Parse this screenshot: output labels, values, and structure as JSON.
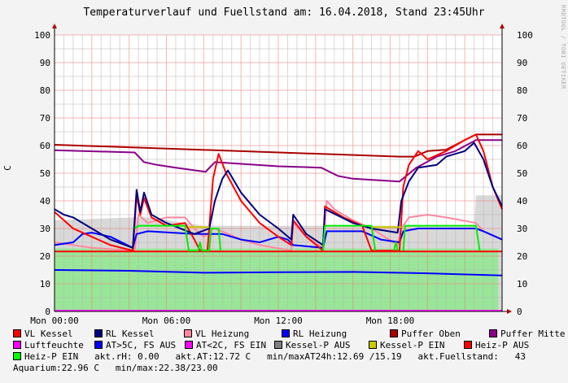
{
  "chart_data": {
    "type": "line",
    "title": "Temperaturverlauf und Fuellstand am: 16.04.2018, Stand 23:45Uhr",
    "ylabel": "C",
    "watermark": "RRDTOOL / TOBI OETIKER",
    "ylim": [
      0,
      100
    ],
    "yticks": [
      "0",
      "10",
      "20",
      "30",
      "40",
      "50",
      "60",
      "70",
      "80",
      "90",
      "100"
    ],
    "xlim_hours": [
      0,
      24
    ],
    "xticks": [
      {
        "h": 0,
        "label": "Mon 00:00"
      },
      {
        "h": 6,
        "label": "Mon 06:00"
      },
      {
        "h": 12,
        "label": "Mon 12:00"
      },
      {
        "h": 18,
        "label": "Mon 18:00"
      }
    ],
    "grid": true,
    "areas": [
      {
        "name": "Kessel-P AUS",
        "color": "#d8d8d8",
        "points": [
          [
            0,
            33
          ],
          [
            4.3,
            34
          ],
          [
            5,
            34
          ],
          [
            6,
            33
          ],
          [
            7,
            32
          ],
          [
            8,
            31
          ],
          [
            10,
            31
          ],
          [
            12,
            31
          ],
          [
            14,
            31
          ],
          [
            16,
            31
          ],
          [
            18,
            31
          ],
          [
            19,
            31
          ],
          [
            22.5,
            31
          ],
          [
            22.6,
            42
          ],
          [
            24,
            42
          ]
        ]
      },
      {
        "name": "Heiz-P EIN",
        "color": "#99e699",
        "points": [
          [
            0,
            22.8
          ],
          [
            23.8,
            22.8
          ],
          [
            23.8,
            0
          ]
        ]
      }
    ],
    "series": [
      {
        "name": "Puffer Oben",
        "color": "#aa0000",
        "points": [
          [
            0,
            60.3
          ],
          [
            18.5,
            56
          ],
          [
            19.3,
            56
          ],
          [
            20,
            58
          ],
          [
            21,
            58.5
          ],
          [
            22,
            62
          ],
          [
            22.6,
            64
          ],
          [
            24,
            64
          ]
        ]
      },
      {
        "name": "Puffer Mitte",
        "color": "#880088",
        "points": [
          [
            0,
            58.3
          ],
          [
            4.3,
            57.5
          ],
          [
            4.8,
            54
          ],
          [
            5.5,
            53
          ],
          [
            6.5,
            52
          ],
          [
            8.1,
            50.5
          ],
          [
            8.6,
            54
          ],
          [
            12,
            52.5
          ],
          [
            14.3,
            52
          ],
          [
            15.2,
            49
          ],
          [
            16,
            48
          ],
          [
            18.5,
            47
          ],
          [
            19.4,
            52
          ],
          [
            20.5,
            56
          ],
          [
            21.5,
            58
          ],
          [
            22.6,
            62
          ],
          [
            24,
            62
          ]
        ]
      },
      {
        "name": "VL Heizung",
        "color": "#ff88a0",
        "points": [
          [
            0,
            25
          ],
          [
            2,
            23
          ],
          [
            4.3,
            22
          ],
          [
            4.5,
            35
          ],
          [
            5,
            32
          ],
          [
            6,
            34
          ],
          [
            7,
            34
          ],
          [
            7.5,
            30
          ],
          [
            8,
            27
          ],
          [
            8.5,
            30
          ],
          [
            9,
            29
          ],
          [
            10,
            26
          ],
          [
            11,
            24
          ],
          [
            12.7,
            22
          ],
          [
            12.8,
            32
          ],
          [
            13.5,
            27
          ],
          [
            14.4,
            23
          ],
          [
            14.6,
            40
          ],
          [
            15,
            37
          ],
          [
            16,
            33
          ],
          [
            17,
            30
          ],
          [
            18.4,
            24
          ],
          [
            18.6,
            30
          ],
          [
            19,
            34
          ],
          [
            20,
            35
          ],
          [
            21,
            34
          ],
          [
            22.6,
            32
          ],
          [
            23,
            29
          ],
          [
            24,
            26
          ]
        ]
      },
      {
        "name": "Heiz-P AUS",
        "color": "#ff0000",
        "points": [
          [
            0,
            21.7
          ],
          [
            24,
            21.7
          ]
        ]
      },
      {
        "name": "AT>5C, FS AUS",
        "color": "#0000ff",
        "points": [
          [
            0,
            15
          ],
          [
            4,
            14.7
          ],
          [
            8,
            14
          ],
          [
            12,
            14.2
          ],
          [
            16,
            14.3
          ],
          [
            20,
            13.8
          ],
          [
            24,
            13
          ]
        ]
      },
      {
        "name": "RL Heizung",
        "color": "#0000ff",
        "points": [
          [
            0,
            24
          ],
          [
            1,
            25
          ],
          [
            1.5,
            28
          ],
          [
            2,
            28.5
          ],
          [
            3,
            27
          ],
          [
            4.2,
            23
          ],
          [
            4.4,
            28
          ],
          [
            5,
            29
          ],
          [
            7.5,
            28
          ],
          [
            9,
            28
          ],
          [
            10,
            26
          ],
          [
            11,
            25
          ],
          [
            12,
            27
          ],
          [
            12.5,
            26
          ],
          [
            12.8,
            24
          ],
          [
            14.4,
            23
          ],
          [
            14.6,
            29
          ],
          [
            16.5,
            29
          ],
          [
            17.5,
            26
          ],
          [
            18.5,
            25
          ],
          [
            18.7,
            29
          ],
          [
            19.5,
            30
          ],
          [
            22.6,
            30
          ],
          [
            23,
            29
          ],
          [
            24,
            26
          ]
        ]
      },
      {
        "name": "VL Kessel",
        "color": "#ff0000",
        "points": [
          [
            0,
            36
          ],
          [
            1,
            30
          ],
          [
            2,
            27
          ],
          [
            3,
            24
          ],
          [
            4.2,
            22
          ],
          [
            4.4,
            42
          ],
          [
            4.6,
            35
          ],
          [
            4.8,
            41
          ],
          [
            5.2,
            34
          ],
          [
            6,
            31
          ],
          [
            7,
            32
          ],
          [
            7.5,
            26
          ],
          [
            7.8,
            22
          ],
          [
            8.2,
            22
          ],
          [
            8.5,
            48
          ],
          [
            8.8,
            57
          ],
          [
            9.2,
            50
          ],
          [
            10,
            40
          ],
          [
            11,
            32
          ],
          [
            12,
            27
          ],
          [
            12.7,
            24
          ],
          [
            12.8,
            33
          ],
          [
            13.5,
            27
          ],
          [
            14.4,
            22
          ],
          [
            14.5,
            38
          ],
          [
            15.5,
            34
          ],
          [
            16.5,
            31
          ],
          [
            17,
            22
          ],
          [
            18.5,
            22
          ],
          [
            18.7,
            45
          ],
          [
            19,
            53
          ],
          [
            19.5,
            58
          ],
          [
            20,
            55
          ],
          [
            21,
            58
          ],
          [
            22,
            62
          ],
          [
            22.6,
            64
          ],
          [
            23,
            58
          ],
          [
            23.5,
            45
          ],
          [
            24,
            37
          ]
        ]
      },
      {
        "name": "RL Kessel",
        "color": "#000080",
        "points": [
          [
            0,
            37
          ],
          [
            0.5,
            35
          ],
          [
            1,
            34
          ],
          [
            2,
            30
          ],
          [
            3,
            26
          ],
          [
            4.2,
            23
          ],
          [
            4.4,
            44
          ],
          [
            4.6,
            36
          ],
          [
            4.8,
            43
          ],
          [
            5.2,
            35
          ],
          [
            6,
            32
          ],
          [
            7.5,
            28
          ],
          [
            8.3,
            30
          ],
          [
            8.6,
            40
          ],
          [
            9,
            48
          ],
          [
            9.3,
            51
          ],
          [
            10,
            43
          ],
          [
            11,
            35
          ],
          [
            12,
            30
          ],
          [
            12.7,
            26
          ],
          [
            12.8,
            35
          ],
          [
            13.5,
            28
          ],
          [
            14.4,
            24
          ],
          [
            14.5,
            37
          ],
          [
            16,
            32
          ],
          [
            17,
            30
          ],
          [
            18.4,
            28.5
          ],
          [
            18.6,
            40
          ],
          [
            19,
            47
          ],
          [
            19.5,
            52
          ],
          [
            20.5,
            53
          ],
          [
            21,
            56
          ],
          [
            22,
            58
          ],
          [
            22.5,
            61
          ],
          [
            23,
            55
          ],
          [
            23.5,
            45
          ],
          [
            24,
            38
          ]
        ]
      },
      {
        "name": "Kessel-P EIN",
        "color": "#c8c800",
        "points": [
          [
            7.2,
            30.5
          ],
          [
            8.3,
            30.5
          ],
          [
            null,
            null
          ],
          [
            17,
            30.5
          ],
          [
            18.6,
            30.5
          ]
        ]
      },
      {
        "name": "Heiz-P EIN",
        "color": "#00ee00",
        "points": [
          [
            4.3,
            30
          ],
          [
            4.5,
            31
          ],
          [
            7,
            31
          ],
          [
            7.2,
            22
          ],
          [
            7.7,
            22
          ],
          [
            7.8,
            25
          ],
          [
            7.9,
            22
          ],
          [
            8.3,
            22
          ],
          [
            8.4,
            30
          ],
          [
            8.8,
            30
          ],
          [
            8.9,
            22
          ],
          [
            null,
            null
          ],
          [
            14.4,
            22
          ],
          [
            14.5,
            31
          ],
          [
            17,
            31
          ],
          [
            17.2,
            22
          ],
          [
            null,
            null
          ],
          [
            18.2,
            22
          ],
          [
            18.3,
            25
          ],
          [
            18.4,
            22
          ],
          [
            null,
            null
          ],
          [
            18.7,
            22
          ],
          [
            18.8,
            31
          ],
          [
            22.6,
            31
          ],
          [
            22.8,
            22
          ]
        ]
      },
      {
        "name": "Luftfeuchte",
        "color": "#ff00ff",
        "points": [
          [
            0,
            0.3
          ],
          [
            24,
            0.3
          ]
        ]
      }
    ]
  },
  "legend": {
    "rows": [
      [
        {
          "label": "VL Kessel",
          "color": "#ff0000"
        },
        {
          "label": "RL Kessel",
          "color": "#000080"
        },
        {
          "label": "VL Heizung",
          "color": "#ff88a0"
        },
        {
          "label": "RL Heizung",
          "color": "#0000ff"
        },
        {
          "label": "Puffer Oben",
          "color": "#aa0000"
        },
        {
          "label": "Puffer Mitte",
          "color": "#880088"
        }
      ],
      [
        {
          "label": "Luftfeuchte",
          "color": "#ff00ff"
        },
        {
          "label": "AT>5C, FS AUS",
          "color": "#0000ff"
        },
        {
          "label": "AT<2C, FS EIN",
          "color": "#ff00ff"
        },
        {
          "label": "Kessel-P AUS",
          "color": "#808080"
        },
        {
          "label": "Kessel-P EIN",
          "color": "#c8c800"
        },
        {
          "label": "Heiz-P AUS",
          "color": "#ff0000"
        }
      ]
    ],
    "row3_item": {
      "label": "Heiz-P EIN",
      "color": "#00ff00"
    },
    "stats": {
      "rh": "akt.rH: 0.00",
      "at": "akt.AT:12.72 C",
      "minmax_at": "min/maxAT24h:12.69 /15.19",
      "fuellstand": "akt.Fuellstand:   43",
      "aquarium": "Aquarium:22.96 C",
      "minmax_aq": "min/max:22.38/23.00"
    }
  }
}
